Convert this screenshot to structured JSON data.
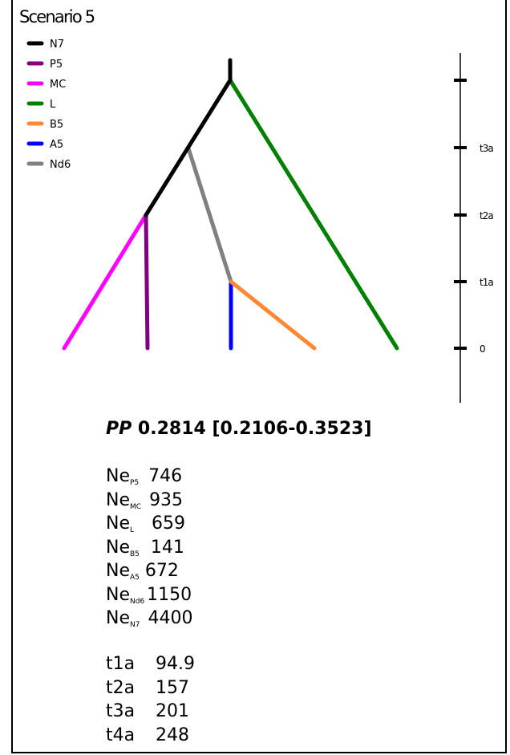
{
  "title": "Scenario 5",
  "legend": [
    {
      "label": "N7",
      "color": "#000000"
    },
    {
      "label": "P5",
      "color": "#800080"
    },
    {
      "label": "MC",
      "color": "#ff00ff"
    },
    {
      "label": "L",
      "color": "#008000"
    },
    {
      "label": "B5",
      "color": "#ff8833"
    },
    {
      "label": "A5",
      "color": "#0000ff"
    },
    {
      "label": "Nd6",
      "color": "#808080"
    }
  ],
  "time_axis": {
    "ticks": [
      "",
      "t3a",
      "t2a",
      "t1a",
      "0"
    ]
  },
  "pp": {
    "label": "PP",
    "value": "0.2814 [0.2106-0.3523]"
  },
  "ne": [
    {
      "prefix": "Ne",
      "sub": "P5",
      "value": "746"
    },
    {
      "prefix": "Ne",
      "sub": "MC",
      "value": "935"
    },
    {
      "prefix": "Ne",
      "sub": "L",
      "value": "659"
    },
    {
      "prefix": "Ne",
      "sub": "B5",
      "value": "141"
    },
    {
      "prefix": "Ne",
      "sub": "A5",
      "value": "672"
    },
    {
      "prefix": "Ne",
      "sub": "Nd6",
      "value": "1150"
    },
    {
      "prefix": "Ne",
      "sub": "N7",
      "value": "4400"
    }
  ],
  "times": [
    {
      "label": "t1a",
      "value": "94.9"
    },
    {
      "label": "t2a",
      "value": "157"
    },
    {
      "label": "t3a",
      "value": "201"
    },
    {
      "label": "t4a",
      "value": "248"
    }
  ]
}
